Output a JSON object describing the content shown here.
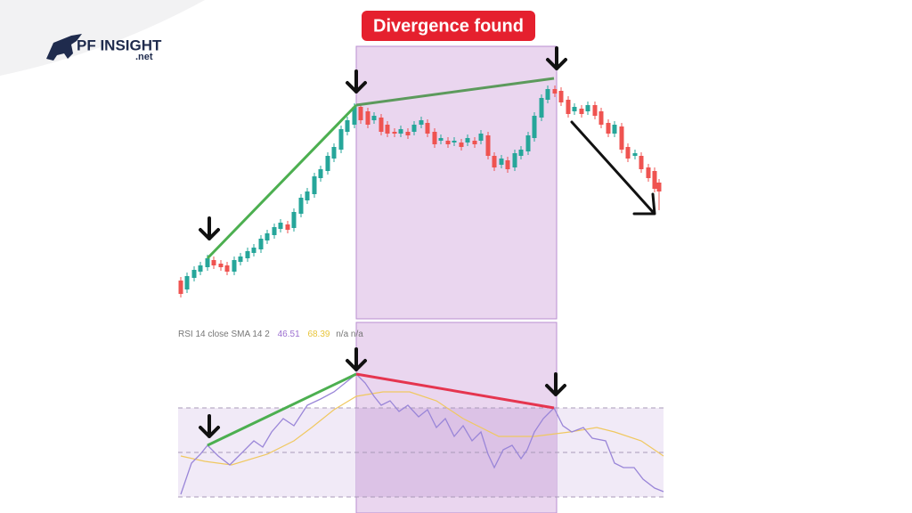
{
  "logo": {
    "name": "PF INSIGHT",
    "suffix": ".net"
  },
  "badge": "Divergence found",
  "indicator": {
    "label": "RSI 14 close SMA 14 2",
    "rsi_value": "46.51",
    "sma_value": "68.39",
    "extra": "n/a n/a"
  }
}
